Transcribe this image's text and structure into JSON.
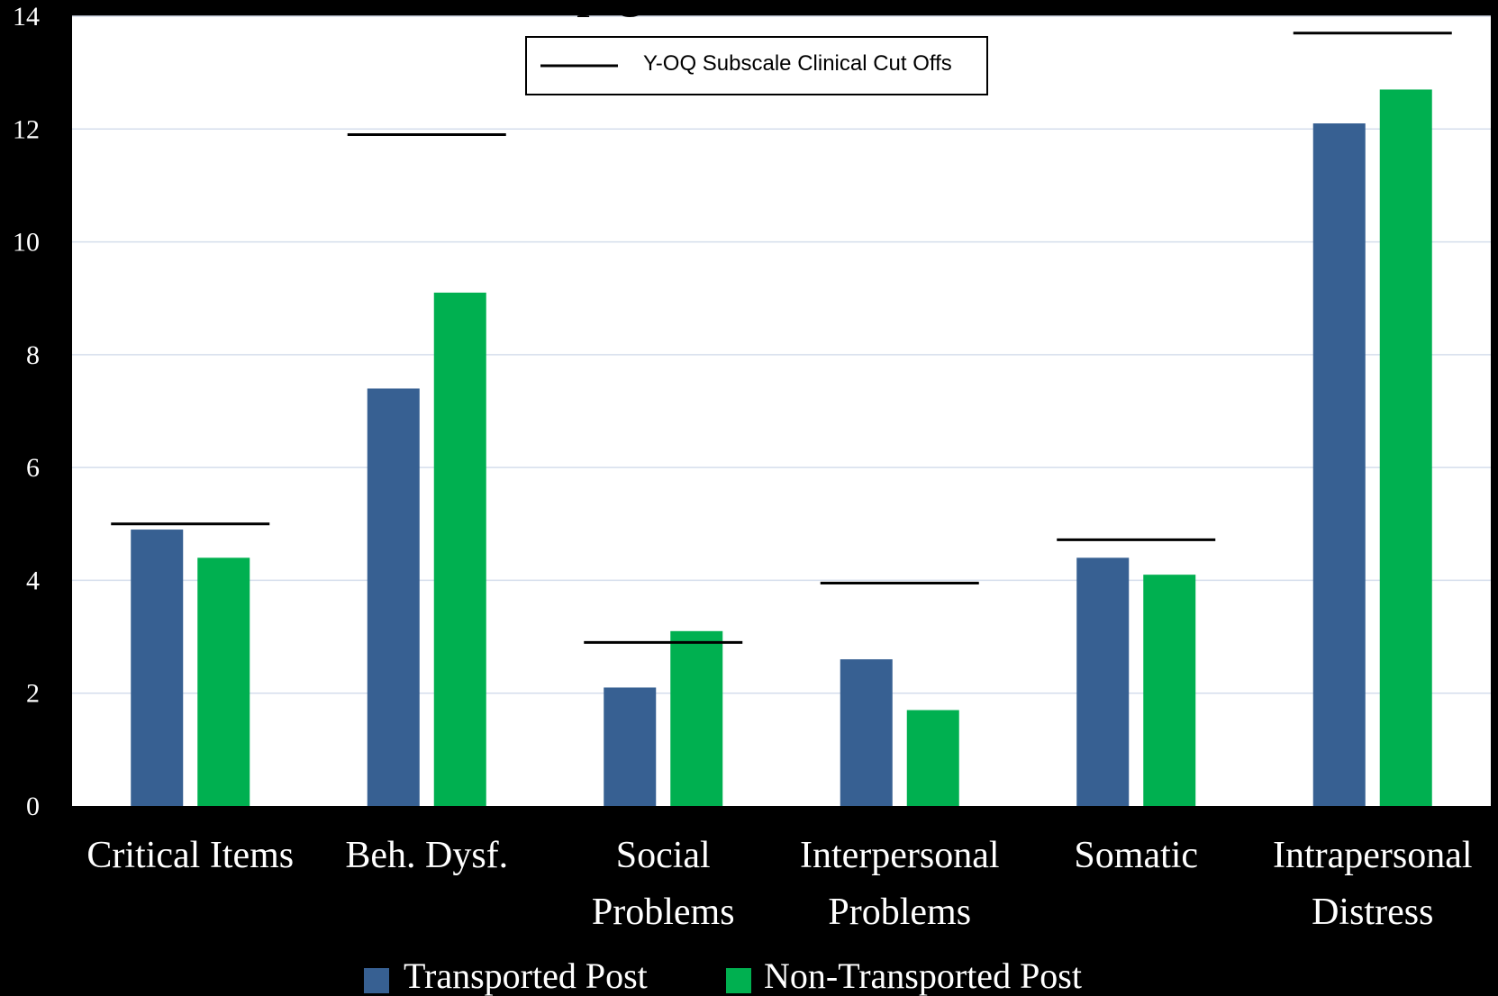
{
  "chart_data": {
    "type": "bar",
    "title_fragment": "p                          g",
    "categories": [
      [
        "Critical Items"
      ],
      [
        "Beh. Dysf."
      ],
      [
        "Social",
        "Problems"
      ],
      [
        "Interpersonal",
        "Problems"
      ],
      [
        "Somatic"
      ],
      [
        "Intrapersonal",
        "Distress"
      ]
    ],
    "series": [
      {
        "name": "Transported Post",
        "color": "#376092",
        "values": [
          4.9,
          7.4,
          2.1,
          2.6,
          4.4,
          12.1
        ]
      },
      {
        "name": "Non-Transported Post",
        "color": "#00B050",
        "values": [
          4.4,
          9.1,
          3.1,
          1.7,
          4.1,
          12.7
        ]
      }
    ],
    "cutoffs": {
      "name": "Y-OQ Subscale Clinical Cut Offs",
      "color": "#000000",
      "values": [
        5.0,
        11.9,
        2.9,
        3.95,
        4.72,
        13.7
      ]
    },
    "yticks": [
      0,
      2,
      4,
      6,
      8,
      10,
      12,
      14
    ],
    "ylim": [
      0,
      14
    ],
    "grid": true,
    "legend_position": "bottom"
  }
}
